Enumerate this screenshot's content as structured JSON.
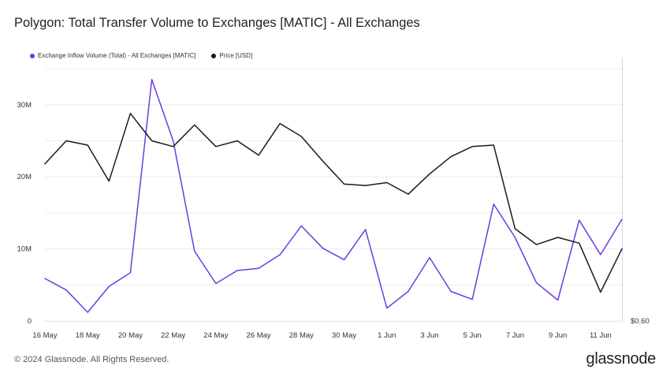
{
  "title": "Polygon: Total Transfer Volume to Exchanges [MATIC] - All Exchanges",
  "footer": "© 2024 Glassnode. All Rights Reserved.",
  "brand": "glassnode",
  "colors": {
    "inflow": "#6a3be4",
    "price": "#1a1a1a",
    "grid": "#ececec",
    "axis": "#d6d0ef"
  },
  "chart_data": {
    "type": "line",
    "title": "Polygon: Total Transfer Volume to Exchanges [MATIC] - All Exchanges",
    "xlabel": "",
    "ylabel": "",
    "x": [
      "16 May",
      "17 May",
      "18 May",
      "19 May",
      "20 May",
      "21 May",
      "22 May",
      "23 May",
      "24 May",
      "25 May",
      "26 May",
      "27 May",
      "28 May",
      "29 May",
      "30 May",
      "31 May",
      "1 Jun",
      "2 Jun",
      "3 Jun",
      "4 Jun",
      "5 Jun",
      "6 Jun",
      "7 Jun",
      "8 Jun",
      "9 Jun",
      "10 Jun",
      "11 Jun",
      "12 Jun"
    ],
    "x_tick_labels": [
      "16 May",
      "18 May",
      "20 May",
      "22 May",
      "24 May",
      "26 May",
      "28 May",
      "30 May",
      "1 Jun",
      "3 Jun",
      "5 Jun",
      "7 Jun",
      "9 Jun",
      "11 Jun"
    ],
    "y_left_ticks": [
      "0",
      "10M",
      "20M",
      "30M"
    ],
    "y_left_range": [
      0,
      36000000
    ],
    "y_right_ticks": [
      "$0.60"
    ],
    "y_right_range": [
      0.6,
      0.78
    ],
    "legend_position": "top-left",
    "series": [
      {
        "name": "Exchange Inflow Volume (Total) - All Exchanges [MATIC]",
        "axis": "left",
        "values": [
          5900000,
          4300000,
          1200000,
          4800000,
          6700000,
          33500000,
          25000000,
          9700000,
          5200000,
          7000000,
          7300000,
          9200000,
          13200000,
          10100000,
          8500000,
          12700000,
          1800000,
          4100000,
          8800000,
          4100000,
          3000000,
          16200000,
          11600000,
          5300000,
          2900000,
          14000000,
          9200000,
          14100000
        ]
      },
      {
        "name": "Price [USD]",
        "axis": "right",
        "values": [
          0.709,
          0.725,
          0.722,
          0.697,
          0.744,
          0.725,
          0.721,
          0.736,
          0.721,
          0.725,
          0.715,
          0.737,
          0.728,
          0.711,
          0.695,
          0.694,
          0.696,
          0.688,
          0.702,
          0.714,
          0.721,
          0.722,
          0.664,
          0.653,
          0.658,
          0.654,
          0.62,
          0.65
        ]
      }
    ]
  }
}
